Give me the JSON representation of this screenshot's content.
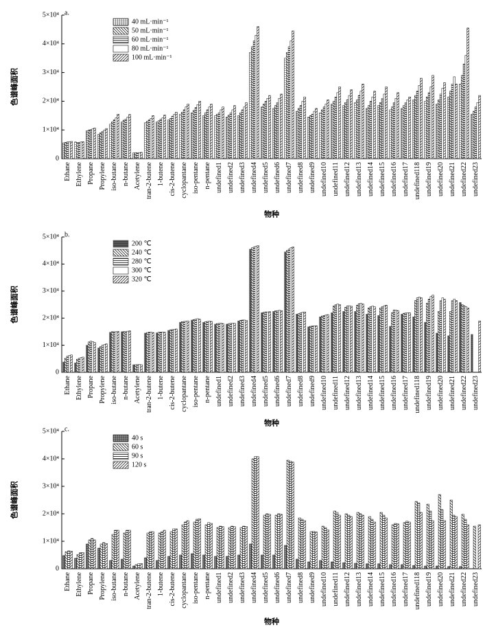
{
  "chart_data": [
    {
      "type": "bar",
      "panel_label": "a.",
      "ylabel": "色谱峰面积",
      "xlabel": "物种",
      "legend": "upper left",
      "categories": [
        "Ethane",
        "Ethylene",
        "Propane",
        "Propylene",
        "iso-butane",
        "n-butane",
        "Acetylene",
        "tran-2-butene",
        "1-butene",
        "cis-2-butene",
        "cyclopantane",
        "iso-pentane",
        "n-pentane",
        "undefined1",
        "undefined2",
        "undefined3",
        "undefined4",
        "undefined5",
        "undefined6",
        "undefined7",
        "undefined8",
        "undefined9",
        "undefined10",
        "undefined11",
        "undefined12",
        "undefined13",
        "undefined14",
        "undefined15",
        "undefined16",
        "undefined17",
        "undefined118",
        "undefined19",
        "undefined20",
        "undefined21",
        "undefined22",
        "undefined23"
      ],
      "ylim": [
        0,
        50000
      ],
      "yticks": [
        0,
        {
          "value": 10000,
          "label": "1×10⁴"
        },
        {
          "value": 20000,
          "label": "2×10⁴"
        },
        {
          "value": 30000,
          "label": "3×10⁴"
        },
        {
          "value": 40000,
          "label": "4×10⁴"
        },
        {
          "value": 50000,
          "label": "5×10⁴"
        }
      ],
      "series": [
        {
          "name": "40 mL·min⁻¹",
          "color": "#000000",
          "pattern": "crosshatch",
          "values": [
            5500,
            5800,
            9700,
            8500,
            12000,
            12800,
            2000,
            12500,
            12800,
            13500,
            15500,
            16000,
            15000,
            15000,
            14500,
            15000,
            37000,
            18000,
            17500,
            35000,
            16500,
            14500,
            16000,
            19000,
            18500,
            19500,
            17500,
            18500,
            17000,
            17500,
            20500,
            20000,
            19000,
            21500,
            26000,
            15500
          ]
        },
        {
          "name": "50 mL·min⁻¹",
          "color": "#000000",
          "pattern": "backslash",
          "values": [
            5700,
            5600,
            10000,
            9000,
            12800,
            13400,
            2100,
            13000,
            13200,
            14000,
            16200,
            16800,
            16000,
            15500,
            15200,
            16000,
            39000,
            19000,
            18500,
            37000,
            17500,
            15000,
            17000,
            20000,
            19500,
            20500,
            18500,
            19500,
            18000,
            18500,
            22000,
            21500,
            20500,
            23500,
            29000,
            16500
          ]
        },
        {
          "name": "60 mL·min⁻¹",
          "color": "#000000",
          "pattern": "horizontal",
          "values": [
            5800,
            5700,
            10200,
            9500,
            13500,
            13800,
            2100,
            13500,
            13800,
            14800,
            17000,
            17800,
            17000,
            16000,
            16000,
            17000,
            41000,
            20000,
            19500,
            39000,
            18500,
            15500,
            18000,
            21500,
            20500,
            22000,
            20000,
            21000,
            19500,
            19500,
            23500,
            23000,
            22500,
            26000,
            33000,
            18000
          ]
        },
        {
          "name": "80 mL·min⁻¹",
          "color": "#000000",
          "pattern": "none",
          "values": [
            5900,
            5800,
            10400,
            10000,
            14200,
            14500,
            2100,
            14000,
            14200,
            15500,
            18000,
            18800,
            18000,
            17000,
            17000,
            18000,
            43000,
            21000,
            21000,
            41000,
            20000,
            16500,
            19000,
            23000,
            22000,
            23500,
            21500,
            22500,
            21000,
            20500,
            25500,
            25000,
            24500,
            28500,
            36000,
            19500
          ]
        },
        {
          "name": "100 mL·min⁻¹",
          "color": "#000000",
          "pattern": "slash",
          "values": [
            6000,
            5900,
            10700,
            10500,
            15500,
            15400,
            2200,
            15000,
            15200,
            16200,
            19000,
            20000,
            19000,
            18000,
            18500,
            19500,
            46000,
            22000,
            22500,
            44500,
            21500,
            17500,
            20500,
            25000,
            24000,
            26000,
            23500,
            25000,
            23000,
            21500,
            28000,
            29000,
            26500,
            26000,
            45500,
            22000
          ]
        }
      ]
    },
    {
      "type": "bar",
      "panel_label": "b.",
      "ylabel": "色谱峰面积",
      "xlabel": "物种",
      "legend": "upper left",
      "categories": [
        "Ethane",
        "Ethylene",
        "Propane",
        "Propylene",
        "iso-butane",
        "n-butane",
        "Acetylene",
        "tran-2-butene",
        "1-butene",
        "cis-2-butene",
        "cyclopantane",
        "iso-pentane",
        "n-pentane",
        "undefined1",
        "undefined2",
        "undefined3",
        "undefined4",
        "undefined5",
        "undefined6",
        "undefined7",
        "undefined8",
        "undefined9",
        "undefined10",
        "undefined11",
        "undefined12",
        "undefined13",
        "undefined14",
        "undefined15",
        "undefined16",
        "undefined17",
        "undefined118",
        "undefined19",
        "undefined20",
        "undefined21",
        "undefined22",
        "undefined23"
      ],
      "ylim": [
        0,
        50000
      ],
      "yticks": [
        0,
        {
          "value": 10000,
          "label": "1×10⁴"
        },
        {
          "value": 20000,
          "label": "2×10⁴"
        },
        {
          "value": 30000,
          "label": "3×10⁴"
        },
        {
          "value": 40000,
          "label": "4×10⁴"
        },
        {
          "value": 50000,
          "label": "5×10⁴"
        }
      ],
      "series": [
        {
          "name": "200 ℃",
          "color": "#555555",
          "pattern": "dark",
          "values": [
            3800,
            3500,
            10000,
            9000,
            14800,
            15000,
            2800,
            14500,
            14600,
            15500,
            18500,
            19300,
            18500,
            17800,
            17800,
            19000,
            45500,
            22000,
            22500,
            44500,
            21500,
            16800,
            20500,
            22000,
            22500,
            22500,
            21500,
            21000,
            17000,
            21500,
            20500,
            18500,
            14500,
            13500,
            25800,
            14000
          ]
        },
        {
          "name": "240 ℃",
          "color": "#000000",
          "pattern": "backslash",
          "values": [
            5200,
            4800,
            11200,
            9500,
            15000,
            15100,
            2800,
            14700,
            14800,
            15700,
            18700,
            19500,
            18700,
            18000,
            18000,
            19200,
            46000,
            22200,
            22700,
            45000,
            21700,
            17000,
            20800,
            24500,
            24000,
            24800,
            23800,
            23800,
            22000,
            21800,
            26500,
            25500,
            22500,
            22500,
            25000,
            null
          ]
        },
        {
          "name": "280 ℃",
          "color": "#000000",
          "pattern": "horizontal",
          "values": [
            6000,
            5200,
            11500,
            10000,
            15000,
            15100,
            2900,
            14800,
            14800,
            15800,
            18800,
            19700,
            18800,
            18100,
            18100,
            19300,
            46300,
            22300,
            22800,
            45500,
            22000,
            17100,
            21000,
            25000,
            24500,
            25300,
            24300,
            24300,
            23000,
            21900,
            27500,
            27000,
            26500,
            26500,
            24600,
            null
          ]
        },
        {
          "name": "300 ℃",
          "color": "#000000",
          "pattern": "none",
          "values": [
            6200,
            5400,
            11300,
            10200,
            15000,
            15200,
            2900,
            14800,
            14900,
            15900,
            18900,
            19800,
            18900,
            18200,
            18200,
            19300,
            46600,
            22300,
            22900,
            46000,
            22200,
            17200,
            21200,
            25200,
            24600,
            25500,
            24500,
            24600,
            23000,
            22000,
            27800,
            28000,
            27500,
            27000,
            24200,
            null
          ]
        },
        {
          "name": "320 ℃",
          "color": "#000000",
          "pattern": "slash",
          "values": [
            6400,
            5600,
            11000,
            10500,
            15100,
            15300,
            2800,
            14700,
            14800,
            16000,
            19000,
            19600,
            18800,
            18000,
            18100,
            19200,
            46800,
            22400,
            22800,
            46300,
            22300,
            17200,
            21300,
            25000,
            24400,
            25200,
            24200,
            24800,
            22800,
            22000,
            27500,
            28500,
            27000,
            26500,
            23800,
            19000
          ]
        }
      ]
    },
    {
      "type": "bar",
      "panel_label": "c.",
      "ylabel": "色谱峰面积",
      "xlabel": "物种",
      "legend": "upper left",
      "categories": [
        "Ethane",
        "Ethylene",
        "Propane",
        "Propylene",
        "iso-butane",
        "n-butane",
        "Acetylene",
        "tran-2-butene",
        "1-butene",
        "cis-2-butene",
        "cyclopantane",
        "iso-pentane",
        "n-pentane",
        "undefined1",
        "undefined2",
        "undefined3",
        "undefined4",
        "undefined5",
        "undefined6",
        "undefined7",
        "undefined8",
        "undefined9",
        "undefined10",
        "undefined11",
        "undefined12",
        "undefined13",
        "undefined14",
        "undefined15",
        "undefined16",
        "undefined17",
        "undefined118",
        "undefined19",
        "undefined20",
        "undefined21",
        "undefined22",
        "undefined23"
      ],
      "ylim": [
        0,
        50000
      ],
      "yticks": [
        0,
        {
          "value": 10000,
          "label": "1×10⁴"
        },
        {
          "value": 20000,
          "label": "2×10⁴"
        },
        {
          "value": 30000,
          "label": "3×10⁴"
        },
        {
          "value": 40000,
          "label": "4×10⁴"
        },
        {
          "value": 50000,
          "label": "5×10⁴"
        }
      ],
      "series": [
        {
          "name": "40 s",
          "color": "#000000",
          "pattern": "darkcross",
          "values": [
            4800,
            3800,
            9000,
            7500,
            3000,
            3500,
            1000,
            4000,
            3000,
            4500,
            5000,
            5500,
            5000,
            4500,
            4500,
            5000,
            9000,
            5000,
            5000,
            8500,
            3500,
            2500,
            3000,
            2500,
            2200,
            2000,
            1800,
            1800,
            1500,
            1500,
            1200,
            1000,
            1000,
            800,
            800,
            null
          ]
        },
        {
          "name": "60 s",
          "color": "#000000",
          "pattern": "backslash",
          "values": [
            6200,
            5200,
            10500,
            9000,
            12500,
            13000,
            1500,
            13000,
            13000,
            13500,
            16000,
            17000,
            16000,
            15000,
            15000,
            15000,
            40000,
            19500,
            19500,
            39500,
            18500,
            13500,
            15500,
            21000,
            20000,
            20500,
            19000,
            20500,
            16000,
            16800,
            24500,
            23500,
            27000,
            25000,
            19800,
            15500
          ]
        },
        {
          "name": "90 s",
          "color": "#000000",
          "pattern": "horizontal",
          "values": [
            6500,
            5800,
            11000,
            9500,
            14000,
            14000,
            1800,
            13500,
            13500,
            14500,
            17000,
            18000,
            16800,
            15500,
            15500,
            15500,
            40800,
            20000,
            20000,
            39200,
            18000,
            13600,
            15000,
            20500,
            19500,
            20000,
            18000,
            19500,
            16500,
            17300,
            24000,
            21000,
            21500,
            19500,
            18000,
            null
          ]
        },
        {
          "name": "120 s",
          "color": "#000000",
          "pattern": "slash",
          "values": [
            6400,
            5900,
            10500,
            9200,
            14000,
            14000,
            1900,
            13500,
            14000,
            14500,
            17500,
            18200,
            16500,
            15300,
            15300,
            15400,
            40800,
            19800,
            19800,
            38800,
            17500,
            13400,
            14200,
            19500,
            19000,
            19500,
            17000,
            18500,
            16300,
            17000,
            20500,
            17500,
            17500,
            19000,
            16000,
            16000
          ]
        }
      ]
    }
  ]
}
